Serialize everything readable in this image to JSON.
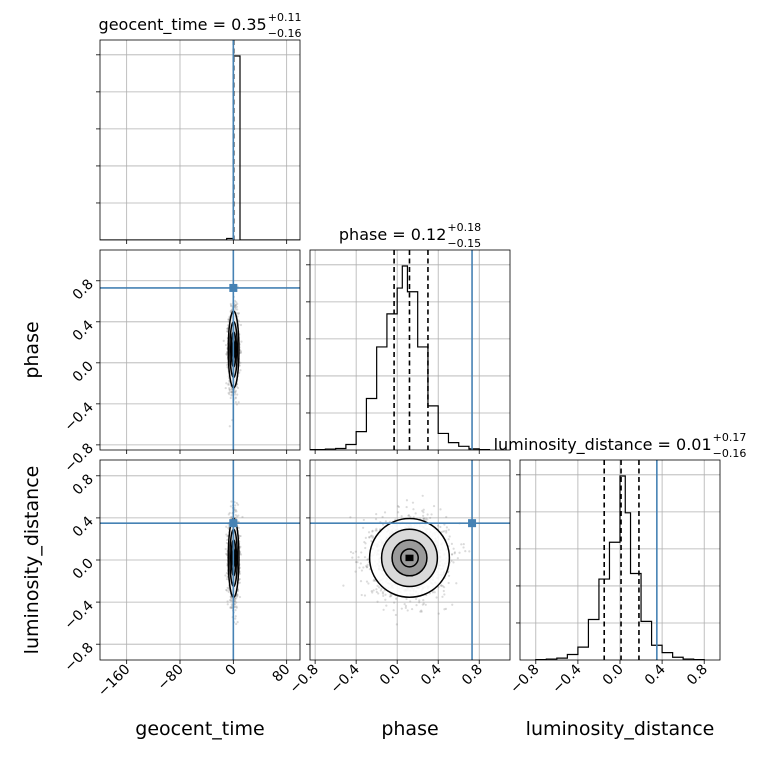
{
  "figure": "corner",
  "chart_data": {
    "type": "corner",
    "parameters": [
      "geocent_time",
      "phase",
      "luminosity_distance"
    ],
    "colors": {
      "truth": "#4682b4",
      "histogram": "#000000",
      "samples": "#7f7f7f",
      "contour_fill_1": "#d9d9d9",
      "contour_fill_2": "#9a9a9a",
      "peak": "#000000",
      "grid": "#b0b0b0"
    },
    "truths": {
      "geocent_time": 0.0,
      "phase": 0.73,
      "luminosity_distance": 0.35
    },
    "ranges": {
      "geocent_time": [
        -200,
        100
      ],
      "phase": [
        -0.85,
        1.1
      ],
      "luminosity_distance": [
        -0.95,
        0.95
      ]
    },
    "ticks": {
      "geocent_time": [
        -160,
        -80,
        0,
        80
      ],
      "phase": [
        -0.8,
        -0.4,
        0.0,
        0.4,
        0.8
      ],
      "luminosity_distance": [
        -0.8,
        -0.4,
        0.0,
        0.4,
        0.8
      ]
    },
    "tick_labels": {
      "geocent_time": [
        "−160",
        "−80",
        "0",
        "80"
      ],
      "phase": [
        "−0.8",
        "−0.4",
        "0.0",
        "0.4",
        "0.8"
      ],
      "luminosity_distance": [
        "−0.8",
        "−0.4",
        "0.0",
        "0.4",
        "0.8"
      ]
    },
    "titles": {
      "geocent_time": {
        "label": "geocent_time = 0.35",
        "plus": "+0.11",
        "minus": "−0.16"
      },
      "phase": {
        "label": "phase = 0.12",
        "plus": "+0.18",
        "minus": "−0.15"
      },
      "luminosity_distance": {
        "label": "luminosity_distance = 0.01",
        "plus": "+0.17",
        "minus": "−0.16"
      }
    },
    "quantiles": {
      "geocent_time": [
        0.19,
        0.35,
        0.46
      ],
      "phase": [
        -0.03,
        0.12,
        0.3
      ],
      "luminosity_distance": [
        -0.15,
        0.01,
        0.18
      ]
    },
    "histograms": {
      "geocent_time": {
        "edges": [
          -200,
          -190,
          -180,
          -170,
          -160,
          -150,
          -140,
          -130,
          -120,
          -110,
          -100,
          -90,
          -80,
          -70,
          -60,
          -50,
          -40,
          -30,
          -20,
          -10,
          0,
          10,
          20,
          30,
          40,
          50,
          60,
          70,
          80,
          90,
          100
        ],
        "counts": [
          0,
          0,
          0,
          0,
          0,
          0,
          0,
          0,
          0,
          0,
          0,
          0,
          0,
          0,
          0,
          0,
          0,
          0,
          0,
          40,
          4850,
          0,
          0,
          0,
          0,
          0,
          0,
          0,
          0,
          0
        ]
      },
      "phase": {
        "edges": [
          -0.85,
          -0.7,
          -0.6,
          -0.5,
          -0.4,
          -0.3,
          -0.2,
          -0.1,
          0.0,
          0.05,
          0.1,
          0.2,
          0.3,
          0.4,
          0.5,
          0.6,
          0.7,
          0.8,
          0.9
        ],
        "counts": [
          2,
          5,
          8,
          30,
          100,
          280,
          560,
          740,
          880,
          1000,
          860,
          560,
          240,
          90,
          40,
          20,
          6,
          2
        ]
      },
      "luminosity_distance": {
        "edges": [
          -0.8,
          -0.7,
          -0.6,
          -0.5,
          -0.4,
          -0.3,
          -0.2,
          -0.1,
          0.0,
          0.05,
          0.1,
          0.2,
          0.3,
          0.4,
          0.5,
          0.6,
          0.7,
          0.8
        ],
        "counts": [
          2,
          5,
          10,
          30,
          70,
          220,
          440,
          640,
          1000,
          800,
          470,
          210,
          80,
          40,
          15,
          5,
          2
        ]
      }
    },
    "contours_2d": {
      "geocent_time__phase": {
        "center": [
          0.4,
          0.13
        ],
        "sigma": [
          3.5,
          0.17
        ]
      },
      "geocent_time__luminosity_distance": {
        "center": [
          0.4,
          0.02
        ],
        "sigma": [
          3.5,
          0.17
        ]
      },
      "phase__luminosity_distance": {
        "center": [
          0.12,
          0.02
        ],
        "sigma": [
          0.17,
          0.17
        ]
      }
    },
    "contour_levels_sigma": [
      0.5,
      1.0,
      1.6,
      2.2
    ]
  }
}
